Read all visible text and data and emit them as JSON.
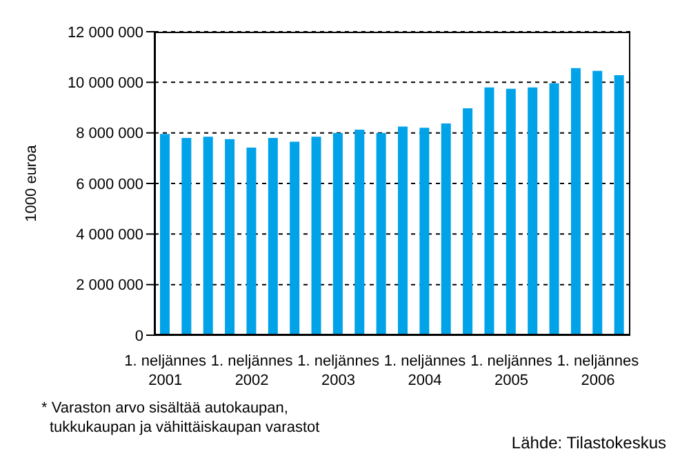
{
  "chart_data": {
    "type": "bar",
    "ylabel": "1000 euroa",
    "categories": [
      "1. neljännes\n2001",
      null,
      null,
      null,
      "1. neljännes\n2002",
      null,
      null,
      null,
      "1. neljännes\n2003",
      null,
      null,
      null,
      "1. neljännes\n2004",
      null,
      null,
      null,
      "1. neljännes\n2005",
      null,
      null,
      null,
      "1. neljännes\n2006",
      null
    ],
    "values": [
      7960000,
      7800000,
      7850000,
      7750000,
      7420000,
      7800000,
      7650000,
      7850000,
      8000000,
      8130000,
      8000000,
      8250000,
      8200000,
      8370000,
      8970000,
      9800000,
      9740000,
      9800000,
      9960000,
      10560000,
      10450000,
      10280000
    ],
    "color": "#00a2e8",
    "ylim": [
      0,
      12000000
    ],
    "yticks": [
      0,
      {
        "value": 2000000,
        "label": "2 000 000"
      },
      {
        "value": 4000000,
        "label": "4 000 000"
      },
      {
        "value": 6000000,
        "label": "6 000 000"
      },
      {
        "value": 8000000,
        "label": "8 000 000"
      },
      {
        "value": 10000000,
        "label": "10 000 000"
      },
      {
        "value": 12000000,
        "label": "12 000 000"
      }
    ],
    "grid": "y",
    "annotations": [
      "* Varaston arvo sisältää autokaupan, tukkukaupan ja vähittäiskaupan varastot",
      "Lähde: Tilastokeskus"
    ]
  }
}
